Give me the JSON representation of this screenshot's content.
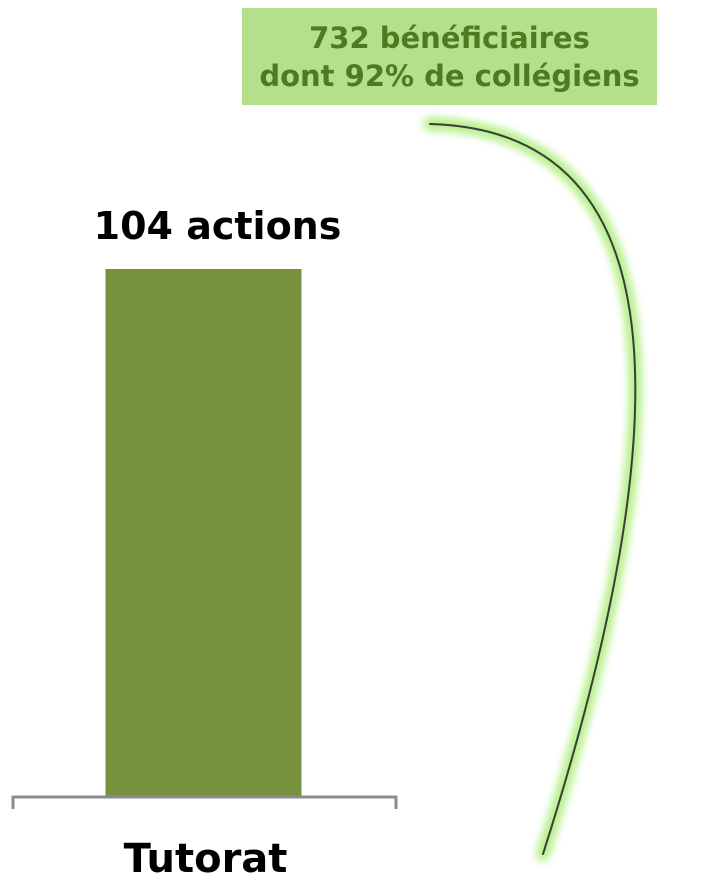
{
  "colors": {
    "bar": "#77923c",
    "callout_bg": "#b4e08c",
    "callout_text": "#4e7a22",
    "axis": "#8c8c8c",
    "arc_glow": "#b6f08a",
    "arc_line": "#3c3c3c"
  },
  "callout": {
    "line1": "732 bénéficiaires",
    "line2": "dont 92% de collégiens"
  },
  "chart_data": {
    "type": "bar",
    "categories": [
      "Tutorat"
    ],
    "values": [
      104
    ],
    "data_labels": [
      "104 actions"
    ],
    "ylim": [
      0,
      104
    ],
    "grid": false,
    "title": "",
    "xlabel": "",
    "ylabel": ""
  }
}
